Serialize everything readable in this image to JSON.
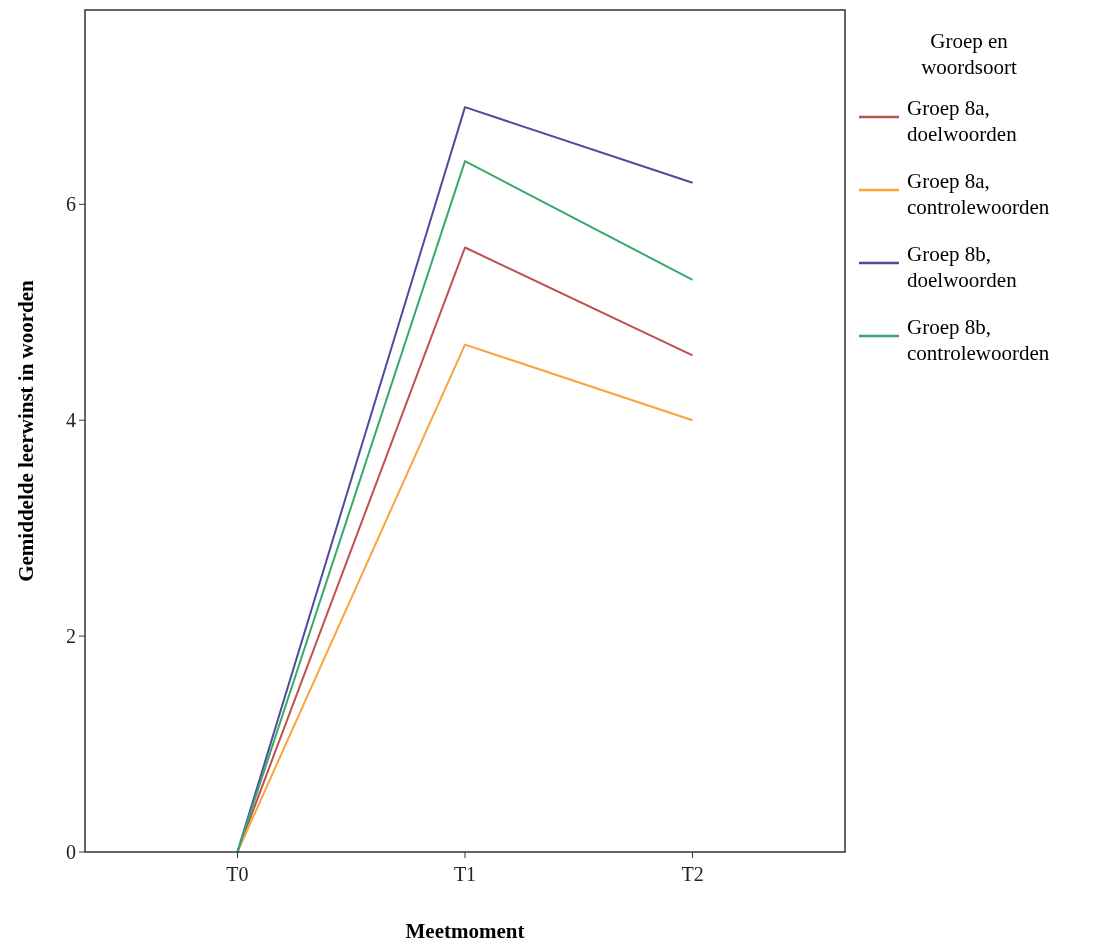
{
  "chart_data": {
    "type": "line",
    "xlabel": "Meetmoment",
    "ylabel": "Gemiddelde leerwinst in woorden",
    "legend_title": "Groep en woordsoort",
    "categories": [
      "T0",
      "T1",
      "T2"
    ],
    "ylim": [
      0,
      7.8
    ],
    "yticks": [
      0,
      2,
      4,
      6
    ],
    "grid": false,
    "legend": "right",
    "marker": "none",
    "line_style": "solid",
    "series": [
      {
        "name": "Groep 8a, doelwoorden",
        "color": "#c0504d",
        "values": [
          0,
          5.6,
          4.6
        ]
      },
      {
        "name": "Groep 8a, controlewoorden",
        "color": "#f9a33a",
        "values": [
          0,
          4.7,
          4.0
        ]
      },
      {
        "name": "Groep 8b, doelwoorden",
        "color": "#4b4c9c",
        "values": [
          0,
          6.9,
          6.2
        ]
      },
      {
        "name": "Groep 8b, controlewoorden",
        "color": "#3aa86a",
        "values": [
          0,
          6.4,
          5.3
        ]
      }
    ]
  }
}
